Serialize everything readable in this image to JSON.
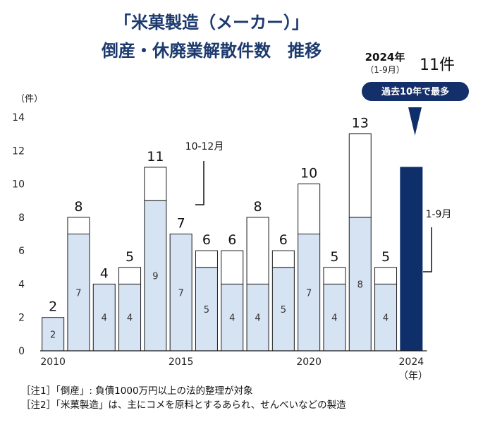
{
  "chart_data": {
    "type": "bar",
    "stacked": true,
    "title_lines": [
      "「米菓製造（メーカー）」",
      "倒産・休廃業解散件数　推移"
    ],
    "ylabel": "（件）",
    "ylim": [
      0,
      14
    ],
    "yticks": [
      0,
      2,
      4,
      6,
      8,
      10,
      12,
      14
    ],
    "categories": [
      2010,
      2011,
      2012,
      2013,
      2014,
      2015,
      2016,
      2017,
      2018,
      2019,
      2020,
      2021,
      2022,
      2023,
      2024
    ],
    "x_tick_labels": [
      {
        "category": 2010,
        "label": "2010"
      },
      {
        "category": 2015,
        "label": "2015"
      },
      {
        "category": 2020,
        "label": "2020"
      },
      {
        "category": 2024,
        "label": "2024"
      }
    ],
    "x_unit_label": "（年）",
    "series": [
      {
        "name": "1-9月",
        "values": [
          2,
          7,
          4,
          4,
          9,
          7,
          5,
          4,
          4,
          5,
          7,
          4,
          8,
          4,
          11
        ]
      },
      {
        "name": "10-12月",
        "values": [
          0,
          1,
          0,
          1,
          2,
          0,
          1,
          2,
          4,
          1,
          3,
          1,
          5,
          1,
          0
        ]
      }
    ],
    "totals": [
      2,
      8,
      4,
      5,
      11,
      7,
      6,
      6,
      8,
      6,
      10,
      5,
      13,
      5,
      11
    ],
    "annotations": {
      "q4_label": "10-12月",
      "q1_3_label": "1-9月"
    },
    "highlight": {
      "year_label": "2024年",
      "period_label": "（1-9月）",
      "count_label": "11件",
      "badge": "過去10年で最多"
    },
    "colors": {
      "bar_fill": "#d6e3f3",
      "bar_highlight": "#0f2f6b",
      "bar_outline": "#1a1a1a",
      "title": "#1c3a6e",
      "badge": "#14306a"
    }
  },
  "notes": [
    "［注1］「倒産」: 負債1000万円以上の法的整理が対象",
    "［注2］「米菓製造」は、主にコメを原料とするあられ、せんべいなどの製造"
  ]
}
